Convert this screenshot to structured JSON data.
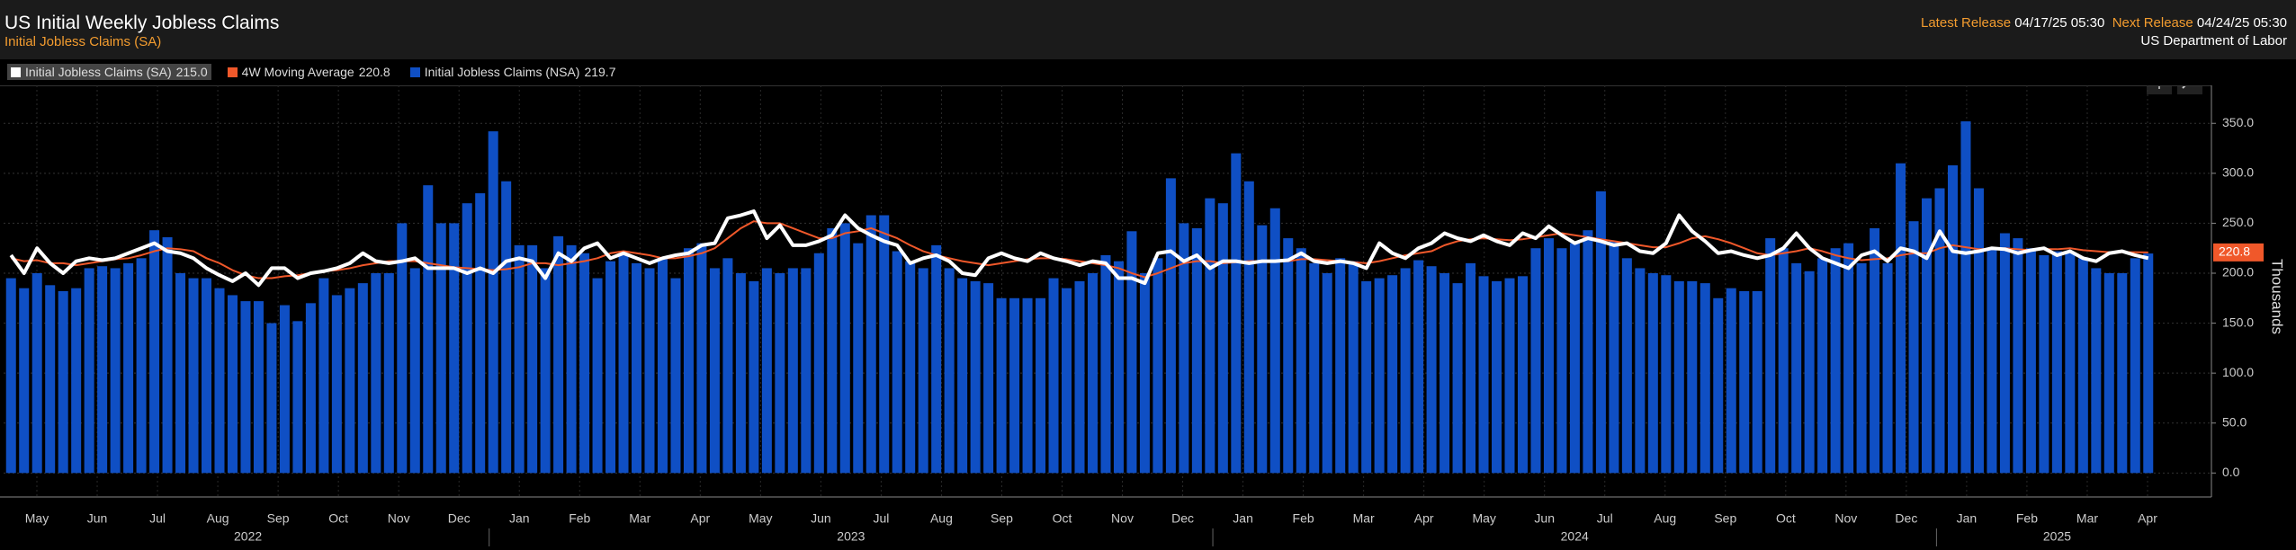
{
  "header": {
    "title": "US Initial Weekly Jobless Claims",
    "subtitle": "Initial Jobless Claims (SA)",
    "latest_release_label": "Latest Release",
    "latest_release": "04/17/25 05:30",
    "next_release_label": "Next Release",
    "next_release": "04/24/25 05:30",
    "source": "US Department of Labor"
  },
  "chart_data": {
    "type": "bar",
    "y_axis_title": "Thousands",
    "ylim": [
      -24,
      388
    ],
    "yticks": [
      {
        "value": 0,
        "label": "0.0"
      },
      {
        "value": 50,
        "label": "50.0"
      },
      {
        "value": 100,
        "label": "100.0"
      },
      {
        "value": 150,
        "label": "150.0"
      },
      {
        "value": 200,
        "label": "200.0"
      },
      {
        "value": 250,
        "label": "250.0"
      },
      {
        "value": 300,
        "label": "300.0"
      },
      {
        "value": 350,
        "label": "350.0"
      }
    ],
    "grid": true,
    "months": [
      "May",
      "Jun",
      "Jul",
      "Aug",
      "Sep",
      "Oct",
      "Nov",
      "Dec",
      "Jan",
      "Feb",
      "Mar",
      "Apr",
      "May",
      "Jun",
      "Jul",
      "Aug",
      "Sep",
      "Oct",
      "Nov",
      "Dec",
      "Jan",
      "Feb",
      "Mar",
      "Apr",
      "May",
      "Jun",
      "Jul",
      "Aug",
      "Sep",
      "Oct",
      "Nov",
      "Dec",
      "Jan",
      "Feb",
      "Mar",
      "Apr"
    ],
    "years": [
      {
        "label": "2022",
        "months": 8
      },
      {
        "label": "2023",
        "months": 12
      },
      {
        "label": "2024",
        "months": 12
      },
      {
        "label": "2025",
        "months": 4
      }
    ],
    "series": [
      {
        "name": "Initial Jobless Claims (SA)",
        "type": "line",
        "color": "#ffffff",
        "last_value_label": "215.0",
        "values": [
          218,
          200,
          225,
          210,
          200,
          212,
          215,
          213,
          215,
          220,
          225,
          230,
          222,
          220,
          215,
          205,
          198,
          192,
          200,
          188,
          205,
          205,
          195,
          200,
          202,
          205,
          210,
          220,
          212,
          210,
          212,
          215,
          205,
          205,
          205,
          200,
          205,
          200,
          212,
          215,
          212,
          195,
          220,
          212,
          225,
          230,
          215,
          220,
          215,
          210,
          215,
          218,
          220,
          228,
          230,
          255,
          258,
          262,
          235,
          248,
          228,
          228,
          232,
          238,
          258,
          245,
          238,
          232,
          228,
          210,
          215,
          218,
          212,
          200,
          198,
          215,
          220,
          215,
          212,
          220,
          215,
          212,
          208,
          212,
          210,
          195,
          195,
          190,
          220,
          222,
          212,
          218,
          205,
          212,
          212,
          210,
          212,
          212,
          213,
          220,
          212,
          210,
          212,
          210,
          205,
          230,
          220,
          215,
          225,
          230,
          240,
          235,
          232,
          238,
          232,
          228,
          240,
          235,
          247,
          238,
          230,
          235,
          232,
          228,
          230,
          222,
          220,
          230,
          258,
          242,
          232,
          220,
          222,
          218,
          215,
          218,
          225,
          240,
          225,
          215,
          210,
          205,
          218,
          222,
          212,
          225,
          222,
          215,
          242,
          222,
          220,
          222,
          225,
          224,
          220,
          223,
          225,
          218,
          222,
          215,
          212,
          220,
          222,
          218,
          215
        ]
      },
      {
        "name": "4W Moving Average",
        "type": "line",
        "color": "#f0582a",
        "last_value_label": "220.8",
        "values": [
          215,
          212,
          213,
          210,
          210,
          208,
          210,
          212,
          214,
          215,
          218,
          222,
          225,
          224,
          222,
          215,
          210,
          203,
          198,
          195,
          195,
          197,
          198,
          200,
          202,
          203,
          205,
          208,
          210,
          212,
          212,
          212,
          210,
          208,
          206,
          205,
          204,
          203,
          204,
          206,
          210,
          210,
          208,
          210,
          212,
          215,
          220,
          222,
          220,
          218,
          215,
          215,
          217,
          220,
          225,
          235,
          245,
          252,
          250,
          250,
          245,
          240,
          235,
          235,
          240,
          242,
          245,
          240,
          235,
          228,
          222,
          218,
          215,
          212,
          210,
          208,
          210,
          212,
          214,
          215,
          215,
          214,
          212,
          210,
          208,
          205,
          200,
          196,
          200,
          205,
          210,
          212,
          212,
          210,
          211,
          212,
          212,
          212,
          212,
          214,
          214,
          213,
          212,
          211,
          210,
          212,
          215,
          218,
          220,
          222,
          228,
          232,
          234,
          235,
          234,
          233,
          234,
          236,
          238,
          240,
          238,
          236,
          234,
          232,
          230,
          228,
          226,
          226,
          230,
          235,
          237,
          234,
          230,
          225,
          220,
          218,
          220,
          222,
          225,
          222,
          218,
          215,
          213,
          214,
          215,
          218,
          220,
          220,
          225,
          228,
          226,
          224,
          224,
          225,
          224,
          223,
          224,
          224,
          225,
          223,
          222,
          221,
          221,
          221,
          220.8
        ]
      },
      {
        "name": "Initial Jobless Claims (NSA)",
        "type": "bar",
        "color": "#0f4fc4",
        "last_value_label": "219.7",
        "values": [
          195,
          185,
          200,
          188,
          182,
          185,
          205,
          207,
          205,
          210,
          215,
          243,
          236,
          200,
          195,
          195,
          185,
          178,
          172,
          172,
          150,
          168,
          152,
          170,
          195,
          178,
          185,
          190,
          200,
          200,
          250,
          205,
          288,
          250,
          250,
          270,
          280,
          342,
          292,
          228,
          228,
          205,
          237,
          228,
          220,
          195,
          212,
          220,
          210,
          205,
          215,
          195,
          225,
          230,
          205,
          215,
          200,
          192,
          205,
          200,
          205,
          205,
          220,
          245,
          250,
          230,
          258,
          258,
          222,
          212,
          205,
          228,
          205,
          195,
          192,
          190,
          175,
          175,
          175,
          175,
          195,
          185,
          192,
          200,
          218,
          212,
          242,
          200,
          215,
          295,
          250,
          245,
          275,
          270,
          320,
          292,
          248,
          265,
          235,
          225,
          210,
          200,
          215,
          212,
          192,
          195,
          198,
          205,
          213,
          207,
          200,
          190,
          210,
          197,
          192,
          195,
          197,
          225,
          235,
          225,
          230,
          243,
          282,
          232,
          215,
          205,
          200,
          198,
          192,
          192,
          190,
          175,
          185,
          182,
          182,
          235,
          225,
          210,
          202,
          215,
          225,
          230,
          210,
          245,
          210,
          310,
          252,
          275,
          285,
          308,
          352,
          285,
          225,
          240,
          235,
          225,
          218,
          222,
          220,
          215,
          205,
          200,
          200,
          215,
          219.7
        ]
      }
    ]
  }
}
